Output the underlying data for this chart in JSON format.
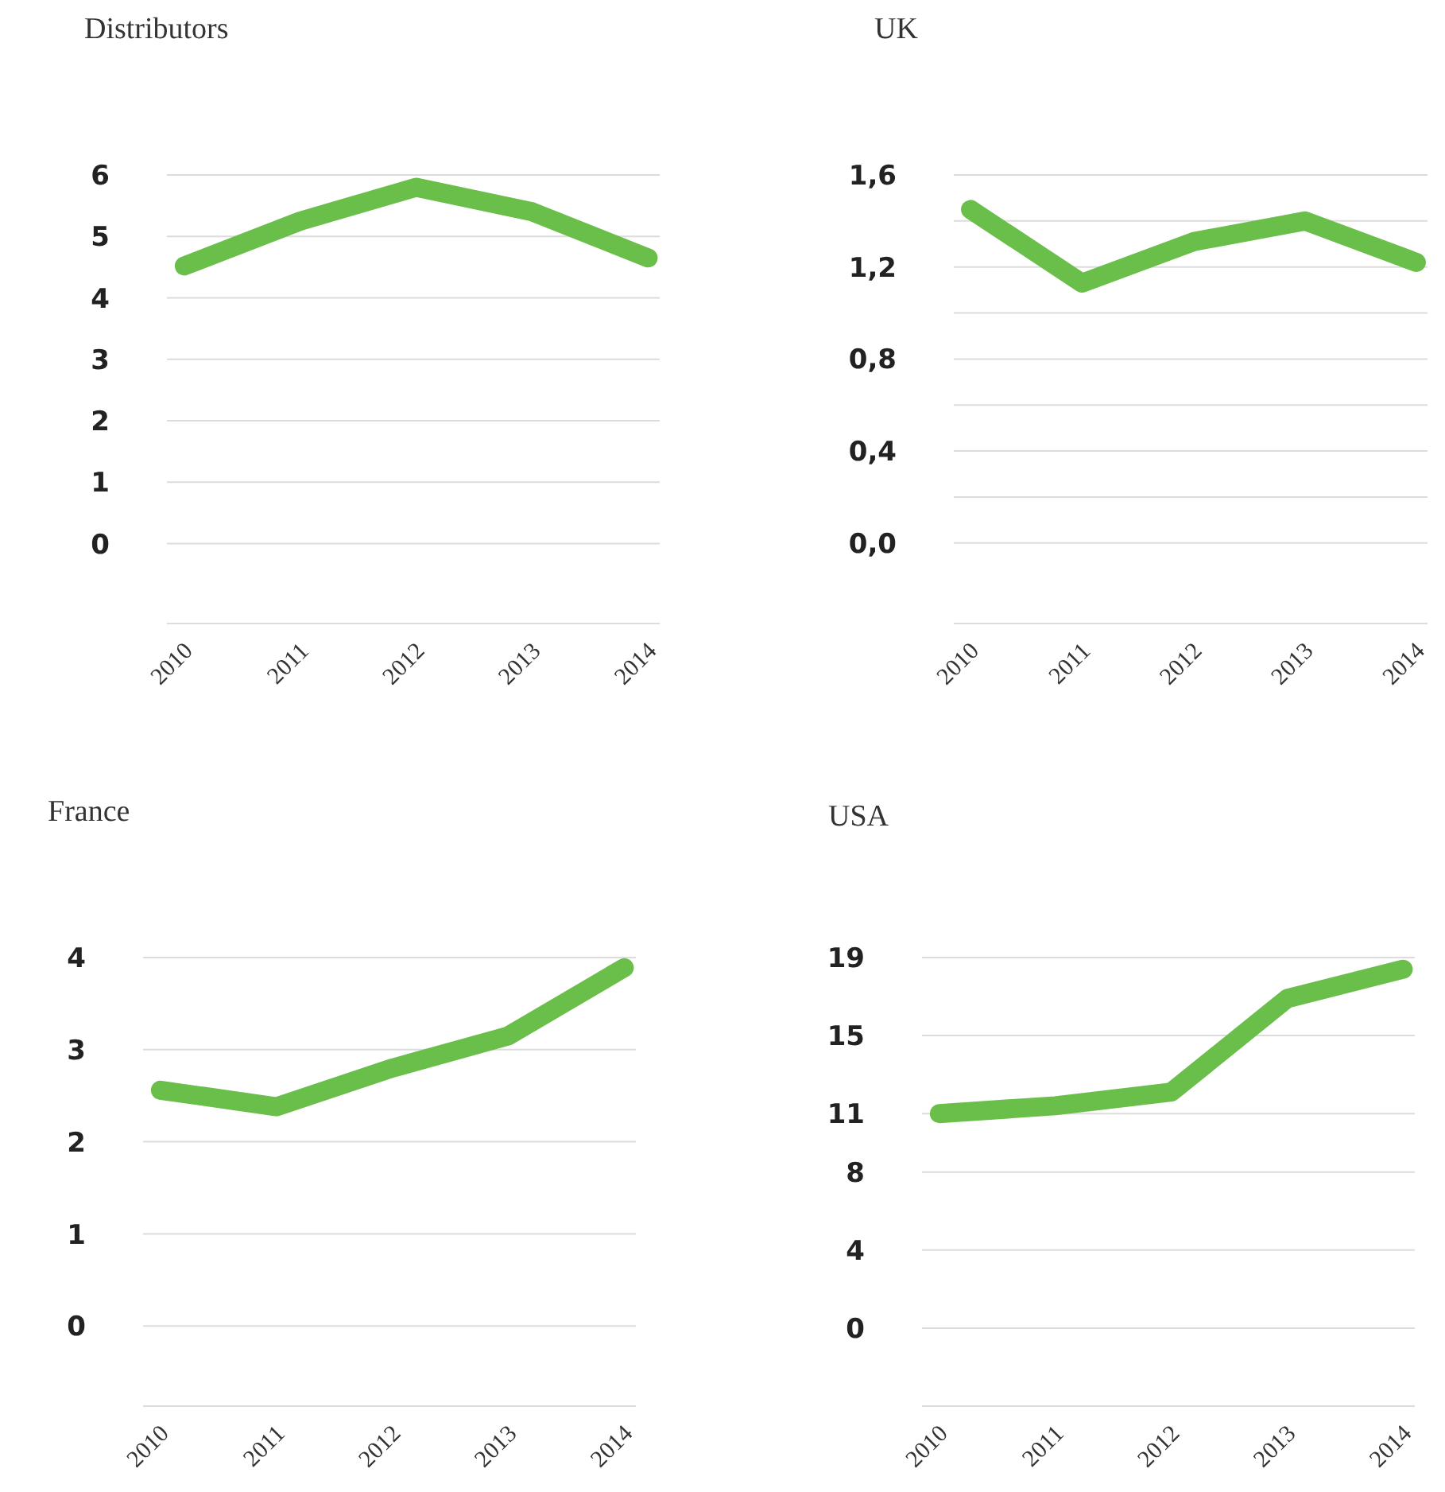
{
  "chart_data": [
    {
      "type": "line",
      "title": "Distributors",
      "categories": [
        "2010",
        "2011",
        "2012",
        "2013",
        "2014"
      ],
      "series": [
        {
          "color": "#6abf4b",
          "values": [
            4.52,
            5.25,
            5.8,
            5.4,
            4.65
          ]
        }
      ],
      "ylim": [
        -1.3,
        6
      ],
      "yticks": [
        0,
        1,
        2,
        3,
        4,
        5,
        6
      ],
      "grid": "y",
      "line_style": "solid"
    },
    {
      "type": "line",
      "title": "UK",
      "categories": [
        "2010",
        "2011",
        "2012",
        "2013",
        "2014"
      ],
      "series": [
        {
          "color": "#6abf4b",
          "values": [
            1.45,
            1.13,
            1.31,
            1.4,
            1.22
          ]
        }
      ],
      "ylim": [
        -0.35,
        1.6
      ],
      "yticks": [
        {
          "value": 0,
          "label": "0,0"
        },
        {
          "value": 0.2,
          "label": null
        },
        {
          "value": 0.4,
          "label": "0,4"
        },
        {
          "value": 0.6,
          "label": null
        },
        {
          "value": 0.8,
          "label": "0,8"
        },
        {
          "value": 1,
          "label": null
        },
        {
          "value": 1.2,
          "label": "1,2"
        },
        {
          "value": 1.4,
          "label": null
        },
        {
          "value": 1.6,
          "label": "1,6"
        }
      ],
      "grid": "y",
      "line_style": "solid"
    },
    {
      "type": "line",
      "title": "France",
      "categories": [
        "2010",
        "2011",
        "2012",
        "2013",
        "2014"
      ],
      "series": [
        {
          "color": "#6abf4b",
          "values": [
            2.56,
            2.38,
            2.8,
            3.15,
            3.89
          ]
        }
      ],
      "ylim": [
        -0.87,
        4
      ],
      "yticks": [
        0,
        1,
        2,
        3,
        4
      ],
      "grid": "y",
      "line_style": "solid"
    },
    {
      "type": "line",
      "title": "USA",
      "categories": [
        "2010",
        "2011",
        "2012",
        "2013",
        "2014"
      ],
      "series": [
        {
          "color": "#6abf4b",
          "values": [
            11.0,
            11.4,
            12.1,
            16.9,
            18.4
          ]
        }
      ],
      "ylim": [
        -4,
        19
      ],
      "yticks": [
        0,
        4,
        8,
        11,
        15,
        19
      ],
      "grid": "y",
      "line_style": "solid"
    }
  ]
}
